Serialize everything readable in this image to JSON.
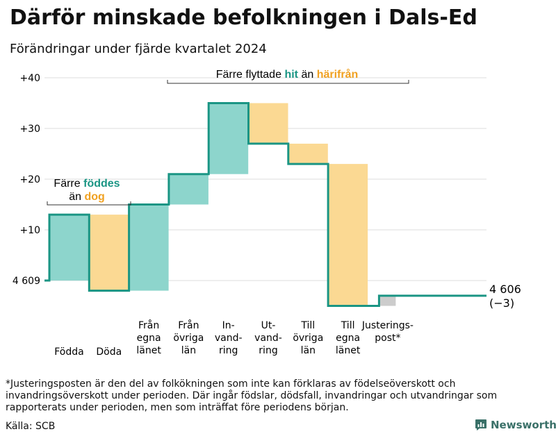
{
  "title": "Därför minskade befolkningen i Dals-Ed",
  "subtitle": "Förändringar under fjärde kvartalet 2024",
  "chart_data": {
    "type": "waterfall",
    "start": {
      "value": 4609,
      "label": "4 609"
    },
    "end": {
      "value": 4606,
      "label": "4 606",
      "change_label": "(−3)"
    },
    "yticks": [
      {
        "value": 40,
        "label": "+40"
      },
      {
        "value": 30,
        "label": "+30"
      },
      {
        "value": 20,
        "label": "+20"
      },
      {
        "value": 10,
        "label": "+10"
      }
    ],
    "ylim": [
      -5,
      40
    ],
    "steps": [
      {
        "category": [
          "Födda"
        ],
        "delta": 13,
        "kind": "in"
      },
      {
        "category": [
          "Döda"
        ],
        "delta": -15,
        "kind": "out"
      },
      {
        "category": [
          "Från",
          "egna",
          "länet"
        ],
        "delta": 17,
        "kind": "in"
      },
      {
        "category": [
          "Från",
          "övriga",
          "län"
        ],
        "delta": 6,
        "kind": "in"
      },
      {
        "category": [
          "In-",
          "vand-",
          "ring"
        ],
        "delta": 14,
        "kind": "in"
      },
      {
        "category": [
          "Ut-",
          "vand-",
          "ring"
        ],
        "delta": -8,
        "kind": "out"
      },
      {
        "category": [
          "Till",
          "övriga",
          "län"
        ],
        "delta": -4,
        "kind": "out"
      },
      {
        "category": [
          "Till",
          "egna",
          "länet"
        ],
        "delta": -28,
        "kind": "out"
      },
      {
        "category": [
          "Justerings-",
          "post*"
        ],
        "delta": 2,
        "kind": "adjust"
      }
    ],
    "annotations": [
      {
        "line1": "Färre",
        "line2_word": "föddes",
        "line3_prefix": "än",
        "line3_word": "dog"
      },
      {
        "prefix": "Färre flyttade",
        "word_in": "hit",
        "middle": "än",
        "word_out": "härifrån"
      }
    ],
    "colors": {
      "inflow": "#8dd5cc",
      "outflow": "#fbd993",
      "adjust": "#cccccc",
      "line": "#1a9584",
      "accent_in": "#1a9584",
      "accent_out": "#f0a121",
      "grid": "#dddddd"
    },
    "grid": true
  },
  "footnote": "*Justeringsposten är den del av folkökningen som inte kan förklaras av födelseöverskott och invandringsöverskott under perioden. Där ingår födslar, dödsfall, invandringar och utvandringar som rapporterats under perioden, men som inträffat före periodens början.",
  "source": "Källa: SCB",
  "logo_text": "Newsworthy"
}
